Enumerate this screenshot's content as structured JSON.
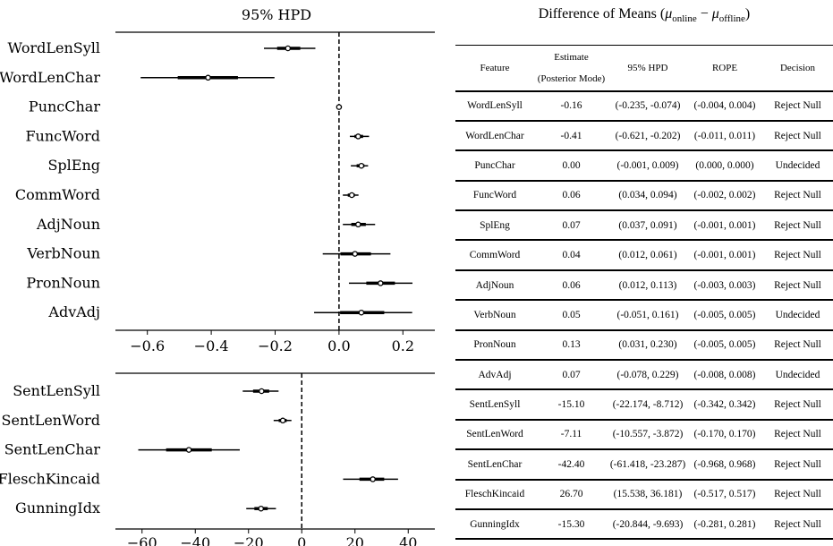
{
  "left_title": "95% HPD",
  "chart_data": [
    {
      "type": "scatter",
      "title": "95% HPD",
      "xlim": [
        -0.7,
        0.3
      ],
      "xticks": [
        "−0.6",
        "−0.4",
        "−0.2",
        "0.0",
        "0.2"
      ],
      "xtick_values": [
        -0.6,
        -0.4,
        -0.2,
        0.0,
        0.2
      ],
      "vline": 0,
      "points": [
        {
          "label": "WordLenSyll",
          "mode": -0.16,
          "lo": -0.235,
          "hi": -0.074
        },
        {
          "label": "WordLenChar",
          "mode": -0.41,
          "lo": -0.621,
          "hi": -0.202
        },
        {
          "label": "PuncChar",
          "mode": 0.0,
          "lo": -0.001,
          "hi": 0.009
        },
        {
          "label": "FuncWord",
          "mode": 0.06,
          "lo": 0.034,
          "hi": 0.094
        },
        {
          "label": "SplEng",
          "mode": 0.07,
          "lo": 0.037,
          "hi": 0.091
        },
        {
          "label": "CommWord",
          "mode": 0.04,
          "lo": 0.012,
          "hi": 0.061
        },
        {
          "label": "AdjNoun",
          "mode": 0.06,
          "lo": 0.012,
          "hi": 0.113
        },
        {
          "label": "VerbNoun",
          "mode": 0.05,
          "lo": -0.051,
          "hi": 0.161
        },
        {
          "label": "PronNoun",
          "mode": 0.13,
          "lo": 0.031,
          "hi": 0.23
        },
        {
          "label": "AdvAdj",
          "mode": 0.07,
          "lo": -0.078,
          "hi": 0.229
        }
      ]
    },
    {
      "type": "scatter",
      "xlim": [
        -70,
        50
      ],
      "xticks": [
        "−60",
        "−40",
        "−20",
        "0",
        "20",
        "40"
      ],
      "xtick_values": [
        -60,
        -40,
        -20,
        0,
        20,
        40
      ],
      "vline": 0,
      "points": [
        {
          "label": "SentLenSyll",
          "mode": -15.1,
          "lo": -22.174,
          "hi": -8.712
        },
        {
          "label": "SentLenWord",
          "mode": -7.11,
          "lo": -10.557,
          "hi": -3.872
        },
        {
          "label": "SentLenChar",
          "mode": -42.4,
          "lo": -61.418,
          "hi": -23.287
        },
        {
          "label": "FleschKincaid",
          "mode": 26.7,
          "lo": 15.538,
          "hi": 36.181
        },
        {
          "label": "GunningIdx",
          "mode": -15.3,
          "lo": -20.844,
          "hi": -9.693
        }
      ]
    }
  ],
  "table": {
    "title_prefix": "Difference of Means (",
    "title_mu1": "μ",
    "title_sub1": "online",
    "title_minus": " − ",
    "title_mu2": "μ",
    "title_sub2": "offline",
    "title_suffix": ")",
    "headers": {
      "feature": "Feature",
      "estimate_line1": "Estimate",
      "estimate_line2": "(Posterior Mode)",
      "hpd": "95% HPD",
      "rope": "ROPE",
      "decision": "Decision"
    },
    "rows": [
      [
        "WordLenSyll",
        "-0.16",
        "(-0.235, -0.074)",
        "(-0.004, 0.004)",
        "Reject Null"
      ],
      [
        "WordLenChar",
        "-0.41",
        "(-0.621, -0.202)",
        "(-0.011, 0.011)",
        "Reject Null"
      ],
      [
        "PuncChar",
        "0.00",
        "(-0.001, 0.009)",
        "(0.000, 0.000)",
        "Undecided"
      ],
      [
        "FuncWord",
        "0.06",
        "(0.034, 0.094)",
        "(-0.002, 0.002)",
        "Reject Null"
      ],
      [
        "SplEng",
        "0.07",
        "(0.037, 0.091)",
        "(-0.001, 0.001)",
        "Reject Null"
      ],
      [
        "CommWord",
        "0.04",
        "(0.012, 0.061)",
        "(-0.001, 0.001)",
        "Reject Null"
      ],
      [
        "AdjNoun",
        "0.06",
        "(0.012, 0.113)",
        "(-0.003, 0.003)",
        "Reject Null"
      ],
      [
        "VerbNoun",
        "0.05",
        "(-0.051, 0.161)",
        "(-0.005, 0.005)",
        "Undecided"
      ],
      [
        "PronNoun",
        "0.13",
        "(0.031, 0.230)",
        "(-0.005, 0.005)",
        "Reject Null"
      ],
      [
        "AdvAdj",
        "0.07",
        "(-0.078, 0.229)",
        "(-0.008, 0.008)",
        "Undecided"
      ],
      [
        "SentLenSyll",
        "-15.10",
        "(-22.174, -8.712)",
        "(-0.342, 0.342)",
        "Reject Null"
      ],
      [
        "SentLenWord",
        "-7.11",
        "(-10.557, -3.872)",
        "(-0.170, 0.170)",
        "Reject Null"
      ],
      [
        "SentLenChar",
        "-42.40",
        "(-61.418, -23.287)",
        "(-0.968, 0.968)",
        "Reject Null"
      ],
      [
        "FleschKincaid",
        "26.70",
        "(15.538, 36.181)",
        "(-0.517, 0.517)",
        "Reject Null"
      ],
      [
        "GunningIdx",
        "-15.30",
        "(-20.844, -9.693)",
        "(-0.281, 0.281)",
        "Reject Null"
      ]
    ]
  }
}
